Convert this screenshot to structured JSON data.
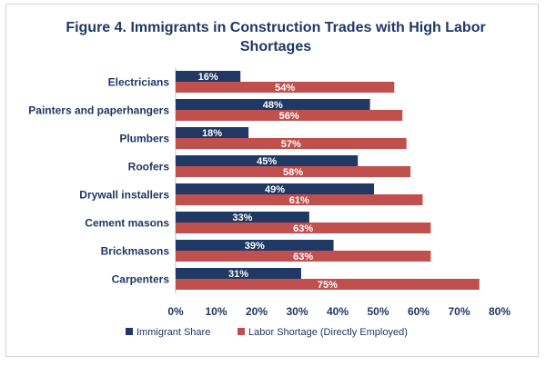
{
  "chart_data": {
    "type": "bar",
    "orientation": "horizontal",
    "title_lines": [
      "Figure 4. Immigrants in Construction Trades with High Labor",
      "Shortages"
    ],
    "categories": [
      "Electricians",
      "Painters and paperhangers",
      "Plumbers",
      "Roofers",
      "Drywall installers",
      "Cement masons",
      "Brickmasons",
      "Carpenters"
    ],
    "series": [
      {
        "name": "Immigrant Share",
        "color": "#1f3864",
        "values": [
          16,
          48,
          18,
          45,
          49,
          33,
          39,
          31
        ],
        "labels": [
          "16%",
          "48%",
          "18%",
          "45%",
          "49%",
          "33%",
          "39%",
          "31%"
        ]
      },
      {
        "name": "Labor Shortage (Directly Employed)",
        "color": "#c0504d",
        "values": [
          54,
          56,
          57,
          58,
          61,
          63,
          63,
          75
        ],
        "labels": [
          "54%",
          "56%",
          "57%",
          "58%",
          "61%",
          "63%",
          "63%",
          "75%"
        ]
      }
    ],
    "xlim": [
      0,
      80
    ],
    "ticks": [
      0,
      10,
      20,
      30,
      40,
      50,
      60,
      70,
      80
    ],
    "tick_labels": [
      "0%",
      "10%",
      "20%",
      "30%",
      "40%",
      "50%",
      "60%",
      "70%",
      "80%"
    ],
    "grid": false,
    "legend_position": "bottom",
    "xlabel": "",
    "ylabel": ""
  }
}
